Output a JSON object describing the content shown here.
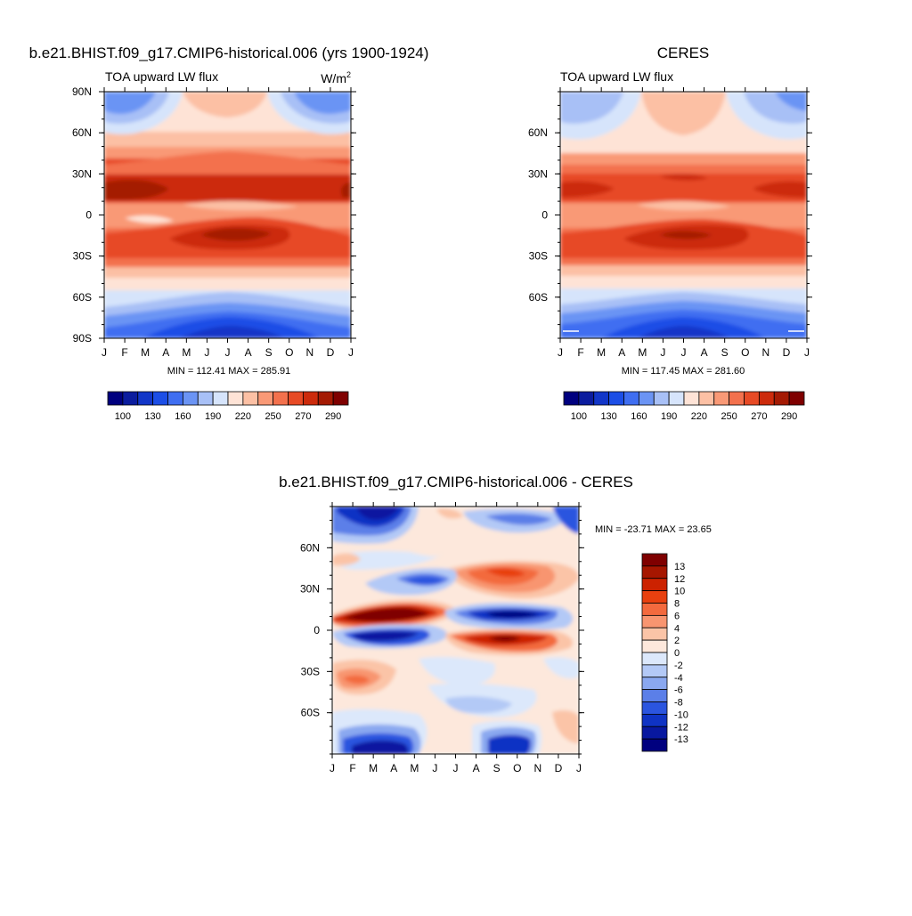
{
  "chart_data": [
    {
      "type": "heatmap",
      "title": "b.e21.BHIST.f09_g17.CMIP6-historical.006 (yrs 1900-1924)",
      "left_label": "TOA upward LW flux",
      "units_base": "W/m",
      "units_exp": "2",
      "x": [
        "J",
        "F",
        "M",
        "A",
        "M",
        "J",
        "J",
        "A",
        "S",
        "O",
        "N",
        "D",
        "J"
      ],
      "y_ticks": [
        "90N",
        "60N",
        "30N",
        "0",
        "30S",
        "60S",
        "90S"
      ],
      "stats": "MIN = 112.41 MAX = 285.91",
      "levels": [
        "100",
        "130",
        "160",
        "190",
        "220",
        "250",
        "270",
        "290"
      ],
      "palette": [
        "#00007f",
        "#0b1c9e",
        "#1236c8",
        "#1c4ee6",
        "#3f6ef1",
        "#6b94f4",
        "#a8c0f6",
        "#d6e4fb",
        "#fee3d6",
        "#fcc0a4",
        "#f99976",
        "#f3714d",
        "#e74a25",
        "#cc2b0c",
        "#a41a03",
        "#7f0000"
      ],
      "lat_range": [
        -90,
        90
      ]
    },
    {
      "type": "heatmap",
      "title": "CERES",
      "left_label": "TOA upward LW flux",
      "x": [
        "J",
        "F",
        "M",
        "A",
        "M",
        "J",
        "J",
        "A",
        "S",
        "O",
        "N",
        "D",
        "J"
      ],
      "y_ticks": [
        "60N",
        "30N",
        "0",
        "30S",
        "60S"
      ],
      "stats": "MIN = 117.45 MAX = 281.60",
      "levels": [
        "100",
        "130",
        "160",
        "190",
        "220",
        "250",
        "270",
        "290"
      ],
      "palette": [
        "#00007f",
        "#0b1c9e",
        "#1236c8",
        "#1c4ee6",
        "#3f6ef1",
        "#6b94f4",
        "#a8c0f6",
        "#d6e4fb",
        "#fee3d6",
        "#fcc0a4",
        "#f99976",
        "#f3714d",
        "#e74a25",
        "#cc2b0c",
        "#a41a03",
        "#7f0000"
      ],
      "lat_range": [
        -90,
        90
      ]
    },
    {
      "type": "heatmap",
      "title": "b.e21.BHIST.f09_g17.CMIP6-historical.006 - CERES",
      "x": [
        "J",
        "F",
        "M",
        "A",
        "M",
        "J",
        "J",
        "A",
        "S",
        "O",
        "N",
        "D",
        "J"
      ],
      "y_ticks": [
        "60N",
        "30N",
        "0",
        "30S",
        "60S"
      ],
      "stats": "MIN = -23.71 MAX =  23.65",
      "levels": [
        "13",
        "12",
        "10",
        "8",
        "6",
        "4",
        "2",
        "0",
        "-2",
        "-4",
        "-6",
        "-8",
        "-10",
        "-12",
        "-13"
      ],
      "palette": [
        "#7f0000",
        "#a61600",
        "#cc2200",
        "#e8400f",
        "#f36a3e",
        "#f89570",
        "#fbc4a7",
        "#fde8dc",
        "#dce8fb",
        "#b3c9f6",
        "#8aa8f0",
        "#5b7fe8",
        "#2b55df",
        "#0f33c4",
        "#0818a0",
        "#00007f"
      ],
      "lat_range": [
        -90,
        90
      ]
    }
  ]
}
